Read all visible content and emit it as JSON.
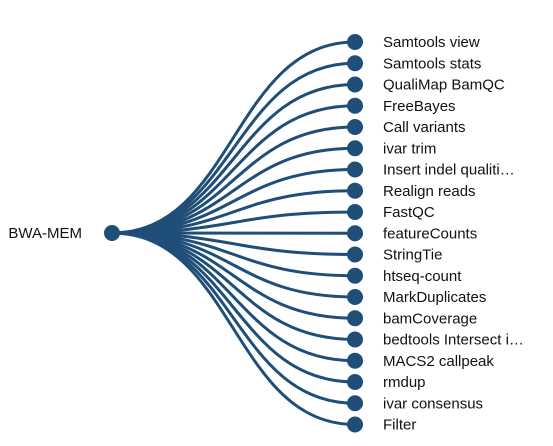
{
  "colors": {
    "node": "#1f4e79",
    "edge": "#1f4e79",
    "text": "#111111",
    "background": "#ffffff"
  },
  "root": {
    "label": "BWA-MEM"
  },
  "children": [
    {
      "label": "Samtools view"
    },
    {
      "label": "Samtools stats"
    },
    {
      "label": "QualiMap BamQC"
    },
    {
      "label": "FreeBayes"
    },
    {
      "label": "Call variants"
    },
    {
      "label": "ivar trim"
    },
    {
      "label": "Insert indel qualiti…"
    },
    {
      "label": "Realign reads"
    },
    {
      "label": "FastQC"
    },
    {
      "label": "featureCounts"
    },
    {
      "label": "StringTie"
    },
    {
      "label": "htseq-count"
    },
    {
      "label": "MarkDuplicates"
    },
    {
      "label": "bamCoverage"
    },
    {
      "label": "bedtools Intersect i…"
    },
    {
      "label": "MACS2 callpeak"
    },
    {
      "label": "rmdup"
    },
    {
      "label": "ivar consensus"
    },
    {
      "label": "Filter"
    }
  ]
}
